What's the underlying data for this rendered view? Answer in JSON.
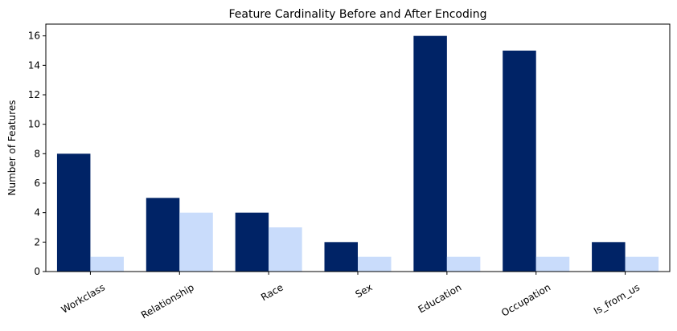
{
  "chart_data": {
    "type": "bar",
    "title": "Feature Cardinality Before and After Encoding",
    "xlabel": "",
    "ylabel": "Number of Features",
    "categories": [
      "Workclass",
      "Relationship",
      "Race",
      "Sex",
      "Education",
      "Occupation",
      "Is_from_us"
    ],
    "series": [
      {
        "values": [
          8,
          5,
          4,
          2,
          16,
          15,
          2
        ],
        "color": "#002366"
      },
      {
        "values": [
          1,
          4,
          3,
          1,
          1,
          1,
          1
        ],
        "color": "#c9dcfb"
      }
    ],
    "ylim": [
      0,
      16.8
    ],
    "yticks": [
      0,
      2,
      4,
      6,
      8,
      10,
      12,
      14,
      16
    ],
    "grid": false,
    "legend": "none"
  }
}
